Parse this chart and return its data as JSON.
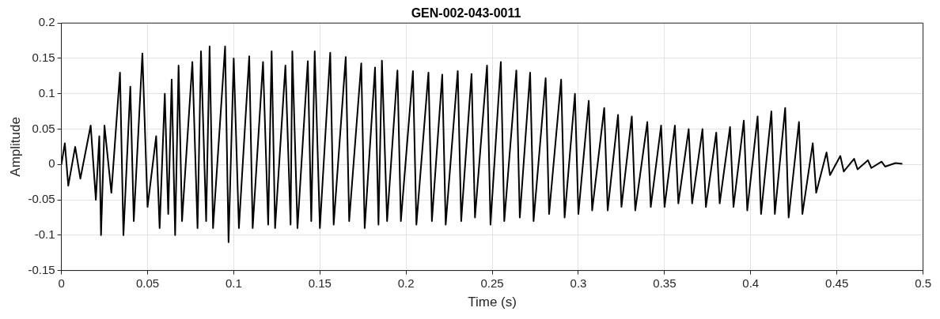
{
  "chart_data": {
    "type": "line",
    "title": "GEN-002-043-0011",
    "xlabel": "Time (s)",
    "ylabel": "Amplitude",
    "xlim": [
      0,
      0.5
    ],
    "xticks": [
      0,
      0.05,
      0.1,
      0.15,
      0.2,
      0.25,
      0.3,
      0.35,
      0.4,
      0.45,
      0.5
    ],
    "ylim": [
      -0.15,
      0.2
    ],
    "yticks": [
      -0.15,
      -0.1,
      -0.05,
      0,
      0.05,
      0.1,
      0.15,
      0.2
    ],
    "grid": true,
    "legend": false,
    "marker": "none",
    "line_style": "solid",
    "series": [
      {
        "color": "#000000",
        "x": [
          0,
          0.002,
          0.004,
          0.008,
          0.011,
          0.017,
          0.02,
          0.022,
          0.023,
          0.025,
          0.029,
          0.034,
          0.036,
          0.04,
          0.042,
          0.047,
          0.05,
          0.055,
          0.057,
          0.06,
          0.062,
          0.064,
          0.066,
          0.068,
          0.07,
          0.076,
          0.079,
          0.081,
          0.084,
          0.086,
          0.088,
          0.095,
          0.097,
          0.1,
          0.103,
          0.109,
          0.111,
          0.117,
          0.12,
          0.122,
          0.124,
          0.13,
          0.133,
          0.134,
          0.137,
          0.143,
          0.145,
          0.147,
          0.15,
          0.156,
          0.158,
          0.165,
          0.167,
          0.174,
          0.176,
          0.182,
          0.184,
          0.186,
          0.189,
          0.195,
          0.197,
          0.204,
          0.206,
          0.213,
          0.215,
          0.221,
          0.223,
          0.23,
          0.232,
          0.238,
          0.24,
          0.247,
          0.249,
          0.255,
          0.257,
          0.264,
          0.266,
          0.272,
          0.274,
          0.281,
          0.283,
          0.29,
          0.292,
          0.298,
          0.3,
          0.306,
          0.308,
          0.315,
          0.317,
          0.323,
          0.325,
          0.331,
          0.333,
          0.34,
          0.342,
          0.348,
          0.35,
          0.356,
          0.358,
          0.364,
          0.366,
          0.372,
          0.374,
          0.38,
          0.382,
          0.388,
          0.39,
          0.396,
          0.398,
          0.404,
          0.406,
          0.412,
          0.414,
          0.42,
          0.422,
          0.428,
          0.43,
          0.436,
          0.438,
          0.444,
          0.446,
          0.452,
          0.454,
          0.46,
          0.462,
          0.468,
          0.47,
          0.476,
          0.478,
          0.484,
          0.488
        ],
        "values": [
          0,
          0.03,
          -0.03,
          0.025,
          -0.02,
          0.055,
          -0.05,
          0.04,
          -0.1,
          0.055,
          -0.04,
          0.13,
          -0.1,
          0.11,
          -0.08,
          0.157,
          -0.06,
          0.04,
          -0.09,
          0.1,
          -0.07,
          0.12,
          -0.1,
          0.14,
          -0.08,
          0.145,
          -0.09,
          0.16,
          -0.08,
          0.167,
          -0.09,
          0.167,
          -0.11,
          0.15,
          -0.09,
          0.153,
          -0.09,
          0.145,
          -0.085,
          0.16,
          -0.09,
          0.14,
          -0.085,
          0.16,
          -0.09,
          0.146,
          -0.08,
          0.16,
          -0.09,
          0.158,
          -0.085,
          0.152,
          -0.08,
          0.143,
          -0.09,
          0.137,
          -0.085,
          0.147,
          -0.08,
          0.133,
          -0.08,
          0.132,
          -0.085,
          0.13,
          -0.08,
          0.127,
          -0.085,
          0.132,
          -0.08,
          0.128,
          -0.075,
          0.14,
          -0.085,
          0.145,
          -0.08,
          0.133,
          -0.075,
          0.13,
          -0.08,
          0.122,
          -0.07,
          0.12,
          -0.075,
          0.1,
          -0.07,
          0.09,
          -0.065,
          0.08,
          -0.065,
          0.07,
          -0.06,
          0.068,
          -0.065,
          0.06,
          -0.06,
          0.055,
          -0.06,
          0.055,
          -0.055,
          0.05,
          -0.055,
          0.05,
          -0.06,
          0.045,
          -0.055,
          0.053,
          -0.06,
          0.062,
          -0.065,
          0.068,
          -0.07,
          0.075,
          -0.07,
          0.08,
          -0.075,
          0.06,
          -0.07,
          0.03,
          -0.04,
          0.017,
          -0.015,
          0.012,
          -0.01,
          0.008,
          -0.007,
          0.006,
          -0.005,
          0.004,
          -0.003,
          0.002,
          0.001
        ]
      }
    ]
  }
}
